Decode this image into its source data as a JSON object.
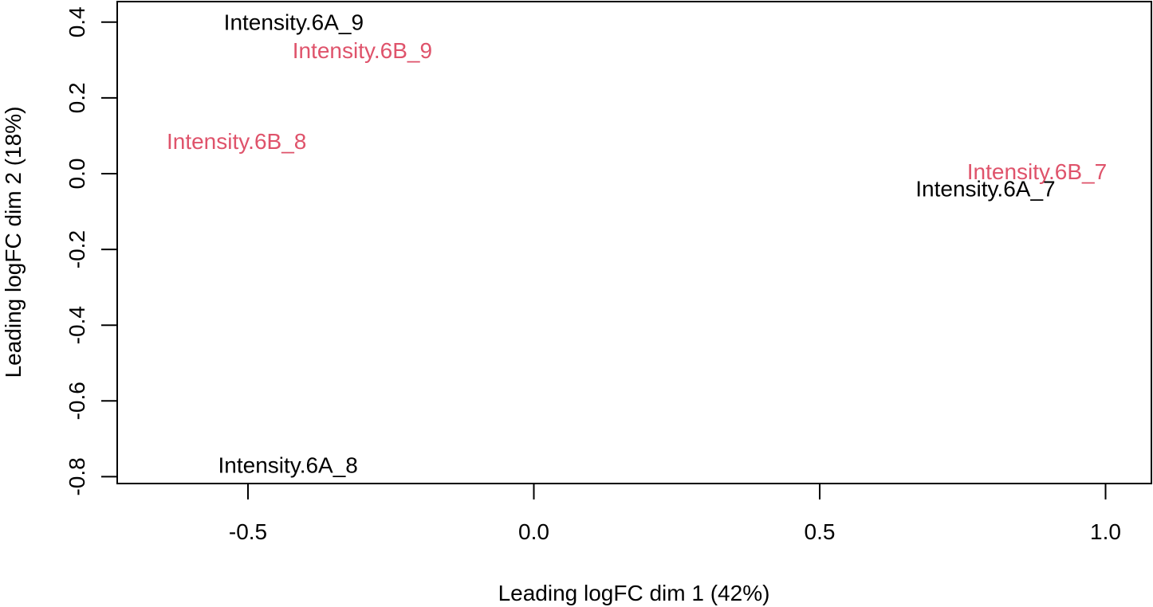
{
  "chart_data": {
    "type": "scatter",
    "title": "",
    "xlabel": "Leading logFC dim 1 (42%)",
    "ylabel": "Leading logFC dim 2 (18%)",
    "xlim": [
      -0.73,
      1.08
    ],
    "ylim": [
      -0.82,
      0.44
    ],
    "grid": false,
    "legend": "none",
    "x_ticks": [
      {
        "value": -0.5,
        "label": "-0.5"
      },
      {
        "value": 0.0,
        "label": "0.0"
      },
      {
        "value": 0.5,
        "label": "0.5"
      },
      {
        "value": 1.0,
        "label": "1.0"
      }
    ],
    "y_ticks": [
      {
        "value": 0.4,
        "label": "0.4"
      },
      {
        "value": 0.2,
        "label": "0.2"
      },
      {
        "value": 0.0,
        "label": "0.0"
      },
      {
        "value": -0.2,
        "label": "-0.2"
      },
      {
        "value": -0.4,
        "label": "-0.4"
      },
      {
        "value": -0.6,
        "label": "-0.6"
      },
      {
        "value": -0.8,
        "label": "-0.8"
      }
    ],
    "points": [
      {
        "label": "Intensity.6A_9",
        "x": -0.42,
        "y": 0.4,
        "color": "#000000"
      },
      {
        "label": "Intensity.6B_9",
        "x": -0.3,
        "y": 0.325,
        "color": "#DF536B"
      },
      {
        "label": "Intensity.6B_8",
        "x": -0.52,
        "y": 0.085,
        "color": "#DF536B"
      },
      {
        "label": "Intensity.6B_7",
        "x": 0.88,
        "y": 0.005,
        "color": "#DF536B"
      },
      {
        "label": "Intensity.6A_7",
        "x": 0.79,
        "y": -0.04,
        "color": "#000000"
      },
      {
        "label": "Intensity.6A_8",
        "x": -0.43,
        "y": -0.77,
        "color": "#000000"
      }
    ]
  }
}
